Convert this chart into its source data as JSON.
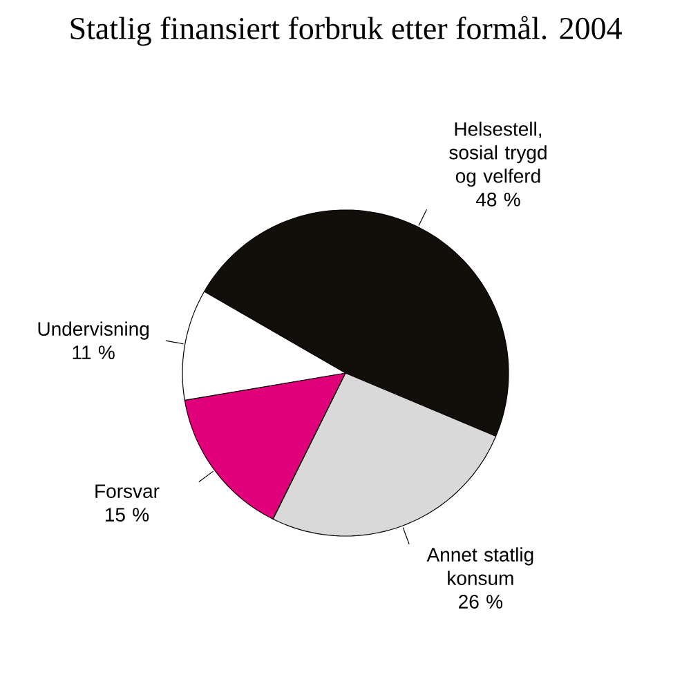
{
  "chart_data": {
    "type": "pie",
    "title": "Statlig finansiert forbruk etter formål. 2004",
    "categories": [
      "Helsestell, sosial trygd og velferd",
      "Annet statlig konsum",
      "Forsvar",
      "Undervisning"
    ],
    "values": [
      48,
      26,
      15,
      11
    ],
    "value_labels": [
      "48 %",
      "26 %",
      "15 %",
      "11 %"
    ],
    "colors": [
      "#120e0a",
      "#d9d9d9",
      "#e0007a",
      "#ffffff"
    ]
  }
}
